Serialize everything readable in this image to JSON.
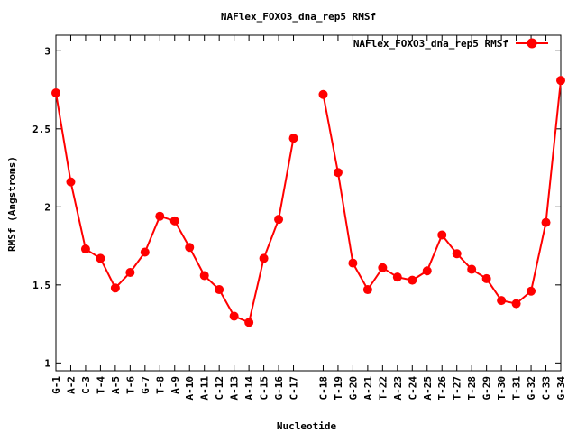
{
  "chart_data": {
    "type": "line",
    "title": "NAFlex_FOXO3_dna_rep5 RMSf",
    "xlabel": "Nucleotide",
    "ylabel": "RMSf (Angstroms)",
    "ylim": [
      0.95,
      3.1
    ],
    "yticks": [
      1,
      1.5,
      2,
      2.5,
      3
    ],
    "ytick_labels": [
      "1",
      "1.5",
      "2",
      "2.5",
      "3"
    ],
    "legend_position": "top-right",
    "grid": false,
    "colors": {
      "series": "#ff0000",
      "axis": "#000000"
    },
    "series": [
      {
        "name": "NAFlex_FOXO3_dna_rep5 RMSf",
        "segments": [
          {
            "categories": [
              "G-1",
              "A-2",
              "C-3",
              "T-4",
              "A-5",
              "T-6",
              "G-7",
              "T-8",
              "A-9",
              "A-10",
              "A-11",
              "C-12",
              "A-13",
              "A-14",
              "C-15",
              "G-16",
              "C-17"
            ],
            "values": [
              2.73,
              2.16,
              1.73,
              1.67,
              1.48,
              1.58,
              1.71,
              1.94,
              1.91,
              1.74,
              1.56,
              1.47,
              1.3,
              1.26,
              1.67,
              1.92,
              2.44
            ]
          },
          {
            "categories": [
              "C-18",
              "T-19",
              "G-20",
              "A-21",
              "T-22",
              "A-23",
              "C-24",
              "A-25",
              "T-26",
              "T-27",
              "T-28",
              "G-29",
              "T-30",
              "T-31",
              "G-32",
              "C-33",
              "G-34"
            ],
            "values": [
              2.72,
              2.22,
              1.64,
              1.47,
              1.61,
              1.55,
              1.53,
              1.59,
              1.82,
              1.7,
              1.6,
              1.54,
              1.4,
              1.38,
              1.46,
              1.9,
              2.81
            ]
          }
        ]
      }
    ]
  }
}
